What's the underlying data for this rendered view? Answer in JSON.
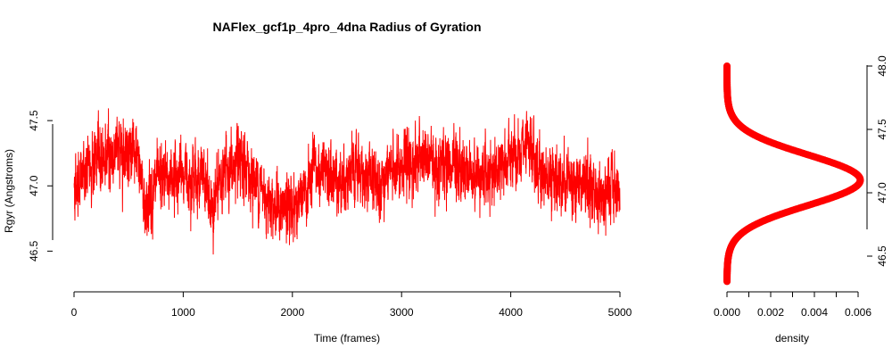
{
  "chart_data": [
    {
      "type": "line",
      "title": "NAFlex_gcf1p_4pro_4dna Radius of Gyration",
      "xlabel": "Time (frames)",
      "ylabel": "Rgyr (Angstroms)",
      "xlim": [
        0,
        5000
      ],
      "ylim": [
        46.4,
        48.0
      ],
      "x_ticks": [
        "0",
        "1000",
        "2000",
        "3000",
        "4000",
        "5000"
      ],
      "y_ticks": [
        "46.5",
        "47.0",
        "47.5"
      ],
      "grid": false,
      "series": [
        {
          "color": "#ff0000",
          "x": [
            0,
            200,
            350,
            500,
            600,
            650,
            800,
            1000,
            1200,
            1250,
            1400,
            1600,
            1800,
            1900,
            2000,
            2100,
            2200,
            2400,
            2600,
            2800,
            3000,
            3200,
            3400,
            3600,
            3800,
            4000,
            4100,
            4130,
            4300,
            4500,
            4700,
            4800,
            5000
          ],
          "y": [
            47.0,
            47.2,
            47.25,
            47.3,
            47.15,
            46.85,
            47.05,
            47.1,
            47.05,
            46.8,
            47.15,
            47.1,
            46.9,
            46.8,
            46.85,
            46.9,
            47.1,
            47.05,
            47.1,
            47.05,
            47.15,
            47.2,
            47.15,
            47.1,
            47.1,
            47.2,
            47.2,
            47.3,
            47.1,
            47.05,
            47.0,
            46.9,
            47.0
          ],
          "y_min": 46.38,
          "y_max": 47.98
        }
      ]
    },
    {
      "type": "line",
      "title": "",
      "xlabel": "density",
      "ylabel": "",
      "xlim": [
        0,
        0.006
      ],
      "ylim": [
        46.3,
        48.0
      ],
      "x_ticks": [
        "0.000",
        "0.002",
        "0.004",
        "0.006"
      ],
      "y_ticks": [
        "46.5",
        "47.0",
        "47.5",
        "48.0"
      ],
      "y_axis_side": "right",
      "series": [
        {
          "color": "#ff0000",
          "mean": 47.1,
          "sd": 0.2,
          "peak_density": 0.0061
        }
      ]
    }
  ]
}
